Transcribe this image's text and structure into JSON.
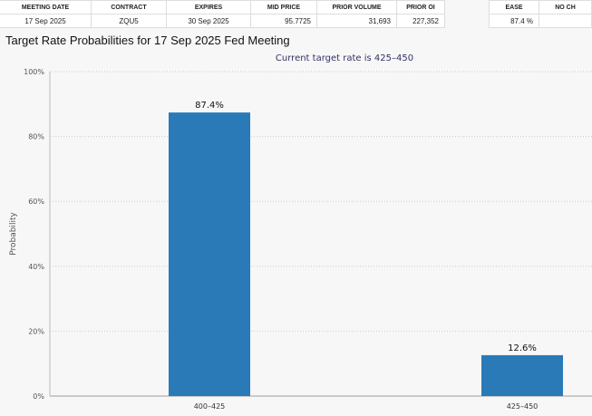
{
  "table": {
    "headers": [
      "MEETING DATE",
      "CONTRACT",
      "EXPIRES",
      "MID PRICE",
      "PRIOR VOLUME",
      "PRIOR OI"
    ],
    "row": [
      "17 Sep 2025",
      "ZQU5",
      "30 Sep 2025",
      "95.7725",
      "31,693",
      "227,352"
    ]
  },
  "table2": {
    "headers": [
      "EASE",
      "NO CH"
    ],
    "row": [
      "87.4 %",
      ""
    ]
  },
  "chart_title": "Target Rate Probabilities for 17 Sep 2025 Fed Meeting",
  "chart_data": {
    "type": "bar",
    "subtitle": "Current target rate is 425–450",
    "categories": [
      "400–425",
      "425–450"
    ],
    "values": [
      87.4,
      12.6
    ],
    "data_labels": [
      "87.4%",
      "12.6%"
    ],
    "ylabel": "Probability",
    "ylim": [
      0,
      100
    ],
    "yticks": [
      "0%",
      "20%",
      "40%",
      "60%",
      "80%",
      "100%"
    ],
    "bar_color": "#2a7ab8"
  }
}
